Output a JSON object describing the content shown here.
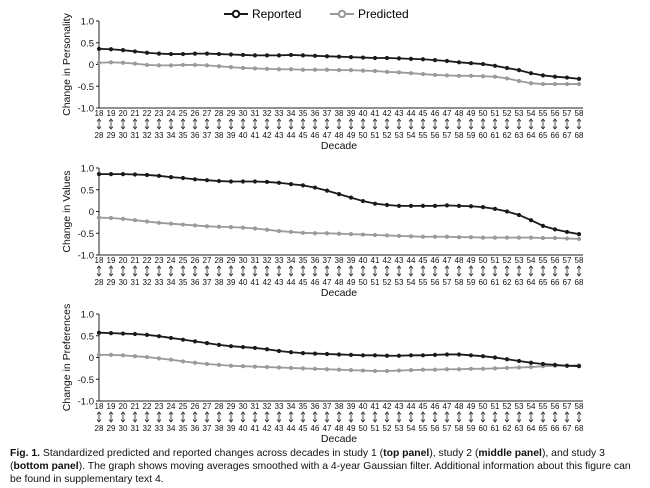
{
  "legend": {
    "reported": "Reported",
    "predicted": "Predicted"
  },
  "caption": {
    "fig_label": "Fig. 1.",
    "text_1": " Standardized predicted and reported changes across decades in study 1 (",
    "bold_1": "top panel",
    "text_2": "), study 2 (",
    "bold_2": "middle panel",
    "text_3": "), and study 3 (",
    "bold_3": "bottom panel",
    "text_4": "). The graph shows moving averages smoothed with a 4-year Gaussian filter. Additional information about this figure can be found in supplementary text 4."
  },
  "colors": {
    "reported": "#1a1a1a",
    "predicted": "#9a9a9a"
  },
  "chart_data": [
    {
      "type": "line",
      "ylabel": "Change in Personality",
      "xlabel": "Decade",
      "ylim": [
        -1.0,
        1.0
      ],
      "yticks": [
        "1.0",
        "0.5",
        "0",
        "-0.5",
        "-1.0"
      ],
      "tick_top": [
        "18",
        "19",
        "20",
        "21",
        "22",
        "23",
        "24",
        "25",
        "26",
        "27",
        "28",
        "29",
        "30",
        "31",
        "32",
        "33",
        "34",
        "35",
        "36",
        "37",
        "38",
        "39",
        "40",
        "41",
        "42",
        "43",
        "44",
        "45",
        "46",
        "47",
        "48",
        "49",
        "50",
        "51",
        "52",
        "53",
        "54",
        "55",
        "56",
        "57",
        "58"
      ],
      "tick_bottom": [
        "28",
        "29",
        "30",
        "31",
        "32",
        "33",
        "34",
        "35",
        "36",
        "37",
        "38",
        "39",
        "40",
        "41",
        "42",
        "43",
        "44",
        "45",
        "46",
        "47",
        "48",
        "49",
        "50",
        "51",
        "52",
        "53",
        "54",
        "55",
        "56",
        "57",
        "58",
        "59",
        "60",
        "61",
        "62",
        "63",
        "64",
        "65",
        "66",
        "67",
        "68"
      ],
      "series": [
        {
          "name": "Reported",
          "values": [
            0.36,
            0.35,
            0.33,
            0.3,
            0.27,
            0.25,
            0.24,
            0.24,
            0.25,
            0.25,
            0.24,
            0.23,
            0.22,
            0.21,
            0.21,
            0.21,
            0.22,
            0.21,
            0.2,
            0.19,
            0.18,
            0.17,
            0.16,
            0.15,
            0.15,
            0.14,
            0.13,
            0.12,
            0.1,
            0.08,
            0.05,
            0.03,
            0.01,
            -0.03,
            -0.08,
            -0.13,
            -0.2,
            -0.25,
            -0.28,
            -0.3,
            -0.33
          ]
        },
        {
          "name": "Predicted",
          "values": [
            0.04,
            0.05,
            0.04,
            0.02,
            -0.01,
            -0.02,
            -0.02,
            -0.01,
            -0.01,
            -0.02,
            -0.04,
            -0.06,
            -0.08,
            -0.09,
            -0.1,
            -0.11,
            -0.11,
            -0.12,
            -0.12,
            -0.12,
            -0.13,
            -0.13,
            -0.14,
            -0.15,
            -0.17,
            -0.18,
            -0.2,
            -0.22,
            -0.24,
            -0.25,
            -0.26,
            -0.26,
            -0.27,
            -0.28,
            -0.32,
            -0.38,
            -0.43,
            -0.45,
            -0.45,
            -0.45,
            -0.45
          ]
        }
      ]
    },
    {
      "type": "line",
      "ylabel": "Change in Values",
      "xlabel": "Decade",
      "ylim": [
        -1.0,
        1.0
      ],
      "yticks": [
        "1.0",
        "0.5",
        "0",
        "-0.5",
        "-1.0"
      ],
      "tick_top": [
        "18",
        "19",
        "20",
        "21",
        "22",
        "23",
        "24",
        "25",
        "26",
        "27",
        "28",
        "29",
        "30",
        "31",
        "32",
        "33",
        "34",
        "35",
        "36",
        "37",
        "38",
        "39",
        "40",
        "41",
        "42",
        "43",
        "44",
        "45",
        "46",
        "47",
        "48",
        "49",
        "50",
        "51",
        "52",
        "53",
        "54",
        "55",
        "56",
        "57",
        "58"
      ],
      "tick_bottom": [
        "28",
        "29",
        "30",
        "31",
        "32",
        "33",
        "34",
        "35",
        "36",
        "37",
        "38",
        "39",
        "40",
        "41",
        "42",
        "43",
        "44",
        "45",
        "46",
        "47",
        "48",
        "49",
        "50",
        "51",
        "52",
        "53",
        "54",
        "55",
        "56",
        "57",
        "58",
        "59",
        "60",
        "61",
        "62",
        "63",
        "64",
        "65",
        "66",
        "67",
        "68"
      ],
      "series": [
        {
          "name": "Reported",
          "values": [
            0.86,
            0.86,
            0.86,
            0.85,
            0.84,
            0.82,
            0.79,
            0.77,
            0.74,
            0.72,
            0.7,
            0.69,
            0.69,
            0.69,
            0.68,
            0.66,
            0.63,
            0.6,
            0.55,
            0.48,
            0.4,
            0.32,
            0.24,
            0.18,
            0.15,
            0.13,
            0.13,
            0.13,
            0.13,
            0.14,
            0.13,
            0.12,
            0.1,
            0.06,
            0.0,
            -0.08,
            -0.2,
            -0.33,
            -0.41,
            -0.47,
            -0.52
          ]
        },
        {
          "name": "Predicted",
          "values": [
            -0.14,
            -0.15,
            -0.17,
            -0.2,
            -0.23,
            -0.26,
            -0.28,
            -0.3,
            -0.32,
            -0.34,
            -0.35,
            -0.36,
            -0.37,
            -0.39,
            -0.42,
            -0.45,
            -0.47,
            -0.49,
            -0.5,
            -0.5,
            -0.51,
            -0.52,
            -0.53,
            -0.54,
            -0.55,
            -0.56,
            -0.57,
            -0.58,
            -0.58,
            -0.58,
            -0.59,
            -0.59,
            -0.6,
            -0.6,
            -0.6,
            -0.6,
            -0.6,
            -0.61,
            -0.61,
            -0.62,
            -0.63
          ]
        }
      ]
    },
    {
      "type": "line",
      "ylabel": "Change in Preferences",
      "xlabel": "Decade",
      "ylim": [
        -1.0,
        1.0
      ],
      "yticks": [
        "1.0",
        "0.5",
        "0",
        "-0.5",
        "-1.0"
      ],
      "tick_top": [
        "18",
        "19",
        "20",
        "21",
        "22",
        "23",
        "24",
        "25",
        "26",
        "27",
        "28",
        "29",
        "30",
        "31",
        "32",
        "33",
        "34",
        "35",
        "36",
        "37",
        "38",
        "39",
        "40",
        "41",
        "42",
        "43",
        "44",
        "45",
        "46",
        "47",
        "48",
        "49",
        "50",
        "51",
        "52",
        "53",
        "54",
        "55",
        "56",
        "57",
        "58"
      ],
      "tick_bottom": [
        "28",
        "29",
        "30",
        "31",
        "32",
        "33",
        "34",
        "35",
        "36",
        "37",
        "38",
        "39",
        "40",
        "41",
        "42",
        "43",
        "44",
        "45",
        "46",
        "47",
        "48",
        "49",
        "50",
        "51",
        "52",
        "53",
        "54",
        "55",
        "56",
        "57",
        "58",
        "59",
        "60",
        "61",
        "62",
        "63",
        "64",
        "65",
        "66",
        "67",
        "68"
      ],
      "series": [
        {
          "name": "Reported",
          "values": [
            0.57,
            0.56,
            0.55,
            0.54,
            0.52,
            0.49,
            0.45,
            0.41,
            0.37,
            0.33,
            0.29,
            0.26,
            0.24,
            0.22,
            0.19,
            0.15,
            0.12,
            0.1,
            0.09,
            0.08,
            0.07,
            0.06,
            0.05,
            0.05,
            0.04,
            0.04,
            0.05,
            0.05,
            0.06,
            0.07,
            0.07,
            0.05,
            0.03,
            0.0,
            -0.04,
            -0.08,
            -0.12,
            -0.15,
            -0.17,
            -0.19,
            -0.2
          ]
        },
        {
          "name": "Predicted",
          "values": [
            0.06,
            0.06,
            0.05,
            0.03,
            0.01,
            -0.02,
            -0.05,
            -0.09,
            -0.12,
            -0.15,
            -0.17,
            -0.19,
            -0.2,
            -0.21,
            -0.22,
            -0.23,
            -0.24,
            -0.25,
            -0.26,
            -0.27,
            -0.28,
            -0.29,
            -0.3,
            -0.31,
            -0.31,
            -0.3,
            -0.29,
            -0.28,
            -0.28,
            -0.27,
            -0.27,
            -0.26,
            -0.26,
            -0.25,
            -0.24,
            -0.23,
            -0.22,
            -0.2,
            -0.19,
            -0.19,
            -0.18
          ]
        }
      ]
    }
  ]
}
